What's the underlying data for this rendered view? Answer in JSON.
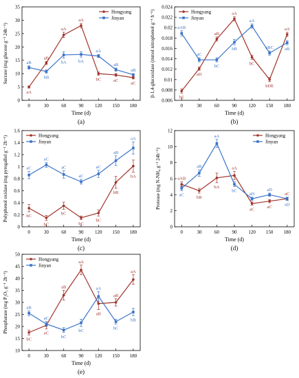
{
  "colors": {
    "series1": "#a0332a",
    "series2": "#3b73c8",
    "axis": "#000000",
    "label_bg": "#f3c9c6"
  },
  "chart_data": [
    {
      "id": "a",
      "type": "line",
      "panel_label": "(a)",
      "xlabel": "Time (d)",
      "ylabel": "Sucrase (mg glucose g⁻¹ 24h⁻¹)",
      "x": [
        0,
        30,
        60,
        90,
        120,
        150,
        180
      ],
      "xlim": [
        -12,
        192
      ],
      "ylim": [
        0,
        35
      ],
      "yticks": [
        0,
        5,
        10,
        15,
        20,
        25,
        30,
        35
      ],
      "legend": "top-right",
      "grid": false,
      "series": [
        {
          "name": "Hongyang",
          "values": [
            5,
            14,
            24.5,
            28,
            10,
            9.5,
            8.5
          ],
          "err": [
            0.4,
            0.6,
            1,
            0.8,
            0.6,
            0.5,
            0.5
          ],
          "labels": [
            "aA",
            "aB",
            "aA",
            "aA",
            "bC",
            "aC",
            "aC"
          ]
        },
        {
          "name": "Jinyan",
          "values": [
            12.3,
            10.8,
            17,
            17.2,
            16.6,
            11.5,
            9.6
          ],
          "err": [
            0.6,
            0.6,
            1.2,
            1,
            0.6,
            0.6,
            0.4
          ],
          "labels": [
            "aB",
            "bB",
            "bA",
            "bA",
            "aA",
            "aB",
            "aB"
          ]
        }
      ]
    },
    {
      "id": "b",
      "type": "line",
      "panel_label": "(b)",
      "xlabel": "Time (d)",
      "ylabel": "β-1,4-glucosidase (mmol nitrophenol g⁻¹ h⁻¹)",
      "x": [
        0,
        30,
        60,
        90,
        120,
        150,
        180
      ],
      "xlim": [
        -12,
        192
      ],
      "ylim": [
        0.006,
        0.024
      ],
      "yticks": [
        0.006,
        0.008,
        0.01,
        0.012,
        0.014,
        0.016,
        0.018,
        0.02,
        0.022,
        0.024
      ],
      "legend": "top-left",
      "grid": false,
      "series": [
        {
          "name": "Hongyang",
          "values": [
            0.0078,
            0.0121,
            0.0178,
            0.0217,
            0.0143,
            0.01,
            0.0187
          ],
          "err": [
            0.0004,
            0.0003,
            0.0004,
            0.0004,
            0.0004,
            0.0004,
            0.0004
          ],
          "labels": [
            "bE",
            "aD",
            "aB",
            "aA",
            "bC",
            "bDE",
            "aA"
          ]
        },
        {
          "name": "Jinyan",
          "values": [
            0.0189,
            0.0138,
            0.0138,
            0.0172,
            0.0203,
            0.0151,
            0.0171
          ],
          "err": [
            0.0005,
            0.0004,
            0.0004,
            0.0005,
            0.0004,
            0.0004,
            0.0004
          ],
          "labels": [
            "aAB",
            "aC",
            "bC",
            "bB",
            "aA",
            "aBC",
            "aB"
          ]
        }
      ]
    },
    {
      "id": "c",
      "type": "line",
      "panel_label": "(c)",
      "xlabel": "Time (d)",
      "ylabel": "Polyphenol oxidase (mg pyrogallol g⁻¹ 2h⁻¹)",
      "x": [
        0,
        30,
        60,
        90,
        120,
        150,
        180
      ],
      "xlim": [
        -12,
        192
      ],
      "ylim": [
        0,
        1.6
      ],
      "yticks": [
        0,
        0.2,
        0.4,
        0.6,
        0.8,
        1.0,
        1.2,
        1.4,
        1.6
      ],
      "legend": "top-left",
      "grid": false,
      "series": [
        {
          "name": "Hongyang",
          "values": [
            0.31,
            0.15,
            0.35,
            0.15,
            0.23,
            0.74,
            1.01
          ],
          "err": [
            0.06,
            0.04,
            0.06,
            0.03,
            0.05,
            0.1,
            0.1
          ],
          "labels": [
            "bC",
            "bC",
            "bC",
            "bC",
            "bC",
            "bB",
            "bA"
          ]
        },
        {
          "name": "Jinyan",
          "values": [
            0.86,
            1.03,
            0.87,
            0.75,
            0.88,
            1.1,
            1.31
          ],
          "err": [
            0.06,
            0.04,
            0.06,
            0.04,
            0.06,
            0.08,
            0.1
          ],
          "labels": [
            "aC",
            "aC",
            "aC",
            "aC",
            "aC",
            "aB",
            "aA"
          ]
        }
      ]
    },
    {
      "id": "d",
      "type": "line",
      "panel_label": "(d)",
      "xlabel": "Time (d)",
      "ylabel": "Protease (mg N-NH₄ g⁻¹ 24h⁻¹)",
      "x": [
        0,
        30,
        60,
        90,
        120,
        150,
        180
      ],
      "xlim": [
        -12,
        192
      ],
      "ylim": [
        0,
        12
      ],
      "yticks": [
        0,
        2,
        4,
        6,
        8,
        10,
        12
      ],
      "legend": "top-right",
      "grid": false,
      "series": [
        {
          "name": "Hongyang",
          "values": [
            5.3,
            4.5,
            6.1,
            6.4,
            2.9,
            3.2,
            3.5
          ],
          "err": [
            0.3,
            0.3,
            0.6,
            0.5,
            0.2,
            0.2,
            0.2
          ],
          "labels": [
            "aAB",
            "bB",
            "bA",
            "aA",
            "aC",
            "aC",
            "aC"
          ]
        },
        {
          "name": "Jinyan",
          "values": [
            4.8,
            6.7,
            10.4,
            5.3,
            3.5,
            4.0,
            3.5
          ],
          "err": [
            0.3,
            0.4,
            0.5,
            0.3,
            0.2,
            0.2,
            0.2
          ],
          "labels": [
            "aC",
            "aB",
            "aA",
            "bC",
            "aD",
            "aD",
            "aD"
          ]
        }
      ]
    },
    {
      "id": "e",
      "type": "line",
      "panel_label": "(e)",
      "xlabel": "Time (d)",
      "ylabel": "Phosphatase (mg P₂O₅ g⁻¹ 2h⁻¹)",
      "x": [
        0,
        30,
        60,
        90,
        120,
        150,
        180
      ],
      "xlim": [
        -12,
        192
      ],
      "ylim": [
        10,
        50
      ],
      "yticks": [
        10,
        15,
        20,
        25,
        30,
        35,
        40,
        45,
        50
      ],
      "legend": "top-left",
      "grid": false,
      "series": [
        {
          "name": "Hongyang",
          "values": [
            17.5,
            20.5,
            33,
            43.5,
            29.5,
            30,
            39.5
          ],
          "err": [
            1,
            1.5,
            2,
            2,
            2.5,
            1.5,
            2
          ],
          "labels": [
            "bC",
            "aC",
            "aB",
            "aA",
            "aB",
            "aB",
            "aA"
          ]
        },
        {
          "name": "Jinyan",
          "values": [
            25.5,
            21,
            18.5,
            21.5,
            32.5,
            22,
            26
          ],
          "err": [
            1,
            1,
            1,
            1.5,
            2,
            1,
            1.5
          ],
          "labels": [
            "aB",
            "aC",
            "bC",
            "bC",
            "aA",
            "bC",
            "bB"
          ]
        }
      ]
    }
  ]
}
